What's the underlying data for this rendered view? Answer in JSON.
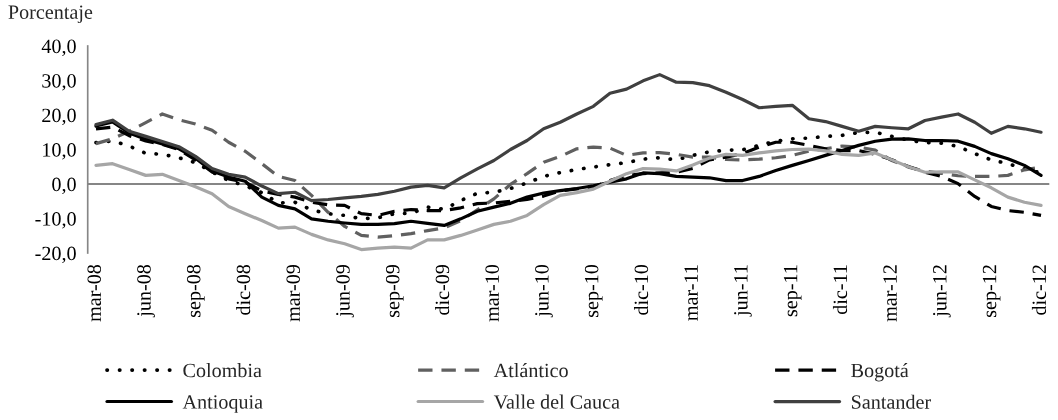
{
  "chart_data": {
    "type": "line",
    "ylabel": "Porcentaje",
    "categories": [
      "mar-08",
      null,
      null,
      "jun-08",
      null,
      null,
      "sep-08",
      null,
      null,
      "dic-08",
      null,
      null,
      "mar-09",
      null,
      null,
      "jun-09",
      null,
      null,
      "sep-09",
      null,
      null,
      "dic-09",
      null,
      null,
      "mar-10",
      null,
      null,
      "jun-10",
      null,
      null,
      "sep-10",
      null,
      null,
      "dic-10",
      null,
      null,
      "mar-11",
      null,
      null,
      "jun-11",
      null,
      null,
      "sep-11",
      null,
      null,
      "dic-11",
      null,
      null,
      "mar-12",
      null,
      null,
      "jun-12",
      null,
      null,
      "sep-12",
      null,
      null,
      "dic-12"
    ],
    "ylim": [
      -20,
      40
    ],
    "yticks": [
      {
        "value": -20,
        "label": "-20,0"
      },
      {
        "value": -10,
        "label": "-10,0"
      },
      {
        "value": 0,
        "label": "0,0"
      },
      {
        "value": 10,
        "label": "10,0"
      },
      {
        "value": 20,
        "label": "20,0"
      },
      {
        "value": 30,
        "label": "30,0"
      },
      {
        "value": 40,
        "label": "40,0"
      }
    ],
    "ref_lines": [
      {
        "axis": "y",
        "value": 0,
        "color": "#868686"
      }
    ],
    "legend": "bottom",
    "series": [
      {
        "name": "Colombia",
        "color": "#000000",
        "line_style": "dotted",
        "values": [
          12.0,
          12.5,
          11.0,
          8.9,
          8.6,
          7.6,
          6.2,
          3.5,
          1.0,
          -0.5,
          -2.5,
          -5.5,
          -5.3,
          -7.5,
          -8.6,
          -9.1,
          -10.1,
          -9.8,
          -8.6,
          -8.5,
          -6.7,
          -7.3,
          -4.8,
          -2.7,
          -2.4,
          -1.3,
          0.3,
          2.2,
          3.3,
          4.2,
          4.9,
          5.6,
          6.2,
          7.2,
          7.6,
          7.0,
          8.3,
          9.3,
          9.8,
          9.9,
          11.2,
          12.4,
          13.1,
          13.3,
          13.8,
          14.1,
          14.9,
          15.0,
          13.8,
          12.7,
          12.0,
          11.8,
          10.9,
          8.8,
          7.0,
          5.9,
          4.4,
          3.2
        ]
      },
      {
        "name": "Atlántico",
        "color": "#606060",
        "line_style": "dashed",
        "values": [
          11.7,
          13.1,
          15.3,
          17.8,
          20.3,
          18.6,
          17.4,
          15.6,
          12.1,
          9.5,
          5.9,
          2.2,
          1.0,
          -3.3,
          -8.2,
          -12.3,
          -14.9,
          -15.4,
          -15.0,
          -14.4,
          -13.5,
          -12.7,
          -10.6,
          -7.5,
          -4.3,
          -0.1,
          3.0,
          6.3,
          8.0,
          10.2,
          10.7,
          10.4,
          8.3,
          9.0,
          9.1,
          8.6,
          7.8,
          7.8,
          7.1,
          7.0,
          7.2,
          7.6,
          8.3,
          9.5,
          10.2,
          11.0,
          10.7,
          9.8,
          6.8,
          4.9,
          3.7,
          3.1,
          2.4,
          2.2,
          2.2,
          2.5,
          4.1,
          4.9
        ]
      },
      {
        "name": "Bogotá",
        "color": "#000000",
        "line_style": "dashed",
        "values": [
          16.0,
          16.5,
          14.0,
          12.5,
          11.5,
          10.0,
          7.0,
          3.5,
          1.5,
          0.5,
          -2.0,
          -3.0,
          -3.8,
          -5.3,
          -6.0,
          -6.2,
          -8.6,
          -9.1,
          -7.9,
          -7.4,
          -7.7,
          -7.7,
          -6.9,
          -5.7,
          -5.5,
          -5.0,
          -4.5,
          -3.5,
          -2.0,
          -1.4,
          -0.9,
          1.0,
          2.5,
          3.0,
          3.2,
          3.4,
          4.5,
          7.0,
          7.8,
          8.8,
          10.7,
          12.1,
          12.1,
          11.2,
          10.2,
          9.7,
          9.7,
          8.6,
          7.0,
          5.1,
          3.4,
          2.2,
          0.1,
          -3.6,
          -6.5,
          -7.7,
          -8.2,
          -9.1
        ]
      },
      {
        "name": "Antioquia",
        "color": "#000000",
        "line_style": "solid",
        "values": [
          16.8,
          18.0,
          14.8,
          13.0,
          11.6,
          10.2,
          7.5,
          3.8,
          2.0,
          0.8,
          -3.8,
          -6.2,
          -7.2,
          -10.1,
          -10.8,
          -11.3,
          -11.7,
          -11.7,
          -11.5,
          -10.8,
          -11.4,
          -12.0,
          -10.1,
          -7.9,
          -6.7,
          -5.6,
          -3.8,
          -2.6,
          -1.9,
          -1.3,
          -0.5,
          0.5,
          1.5,
          3.2,
          3.0,
          2.2,
          2.0,
          1.8,
          1.0,
          1.0,
          2.2,
          3.9,
          5.4,
          6.8,
          8.3,
          9.7,
          11.2,
          12.4,
          13.0,
          13.1,
          12.6,
          12.6,
          12.4,
          10.9,
          8.8,
          7.3,
          5.4,
          2.5
        ]
      },
      {
        "name": "Valle del Cauca",
        "color": "#a6a6a6",
        "line_style": "solid",
        "values": [
          5.4,
          5.9,
          4.2,
          2.5,
          2.8,
          1.0,
          -0.8,
          -2.8,
          -6.5,
          -8.6,
          -10.6,
          -12.8,
          -12.5,
          -14.6,
          -16.2,
          -17.3,
          -19.0,
          -18.6,
          -18.3,
          -18.6,
          -16.2,
          -16.2,
          -14.9,
          -13.3,
          -11.7,
          -10.8,
          -9.1,
          -6.0,
          -3.3,
          -2.5,
          -1.5,
          0.8,
          3.0,
          4.5,
          4.3,
          3.8,
          5.5,
          7.5,
          8.6,
          8.3,
          9.0,
          9.6,
          10.0,
          10.1,
          9.6,
          8.6,
          8.3,
          9.0,
          7.0,
          5.0,
          3.4,
          3.5,
          3.5,
          1.2,
          -1.1,
          -3.8,
          -5.3,
          -6.2
        ]
      },
      {
        "name": "Santander",
        "color": "#404040",
        "line_style": "solid",
        "values": [
          17.2,
          18.5,
          15.3,
          13.8,
          12.3,
          10.8,
          8.0,
          4.5,
          2.8,
          2.0,
          -0.6,
          -2.8,
          -2.4,
          -4.8,
          -4.5,
          -4.0,
          -3.6,
          -3.0,
          -2.1,
          -0.9,
          -0.4,
          -1.1,
          1.8,
          4.4,
          6.8,
          10.0,
          12.6,
          16.0,
          17.9,
          20.3,
          22.5,
          26.3,
          27.5,
          29.9,
          31.7,
          29.5,
          29.4,
          28.5,
          26.6,
          24.5,
          22.1,
          22.5,
          22.8,
          18.9,
          18.1,
          16.7,
          15.3,
          16.7,
          16.3,
          16.0,
          18.4,
          19.4,
          20.3,
          17.9,
          14.7,
          16.7,
          16.0,
          15.0
        ]
      }
    ]
  }
}
